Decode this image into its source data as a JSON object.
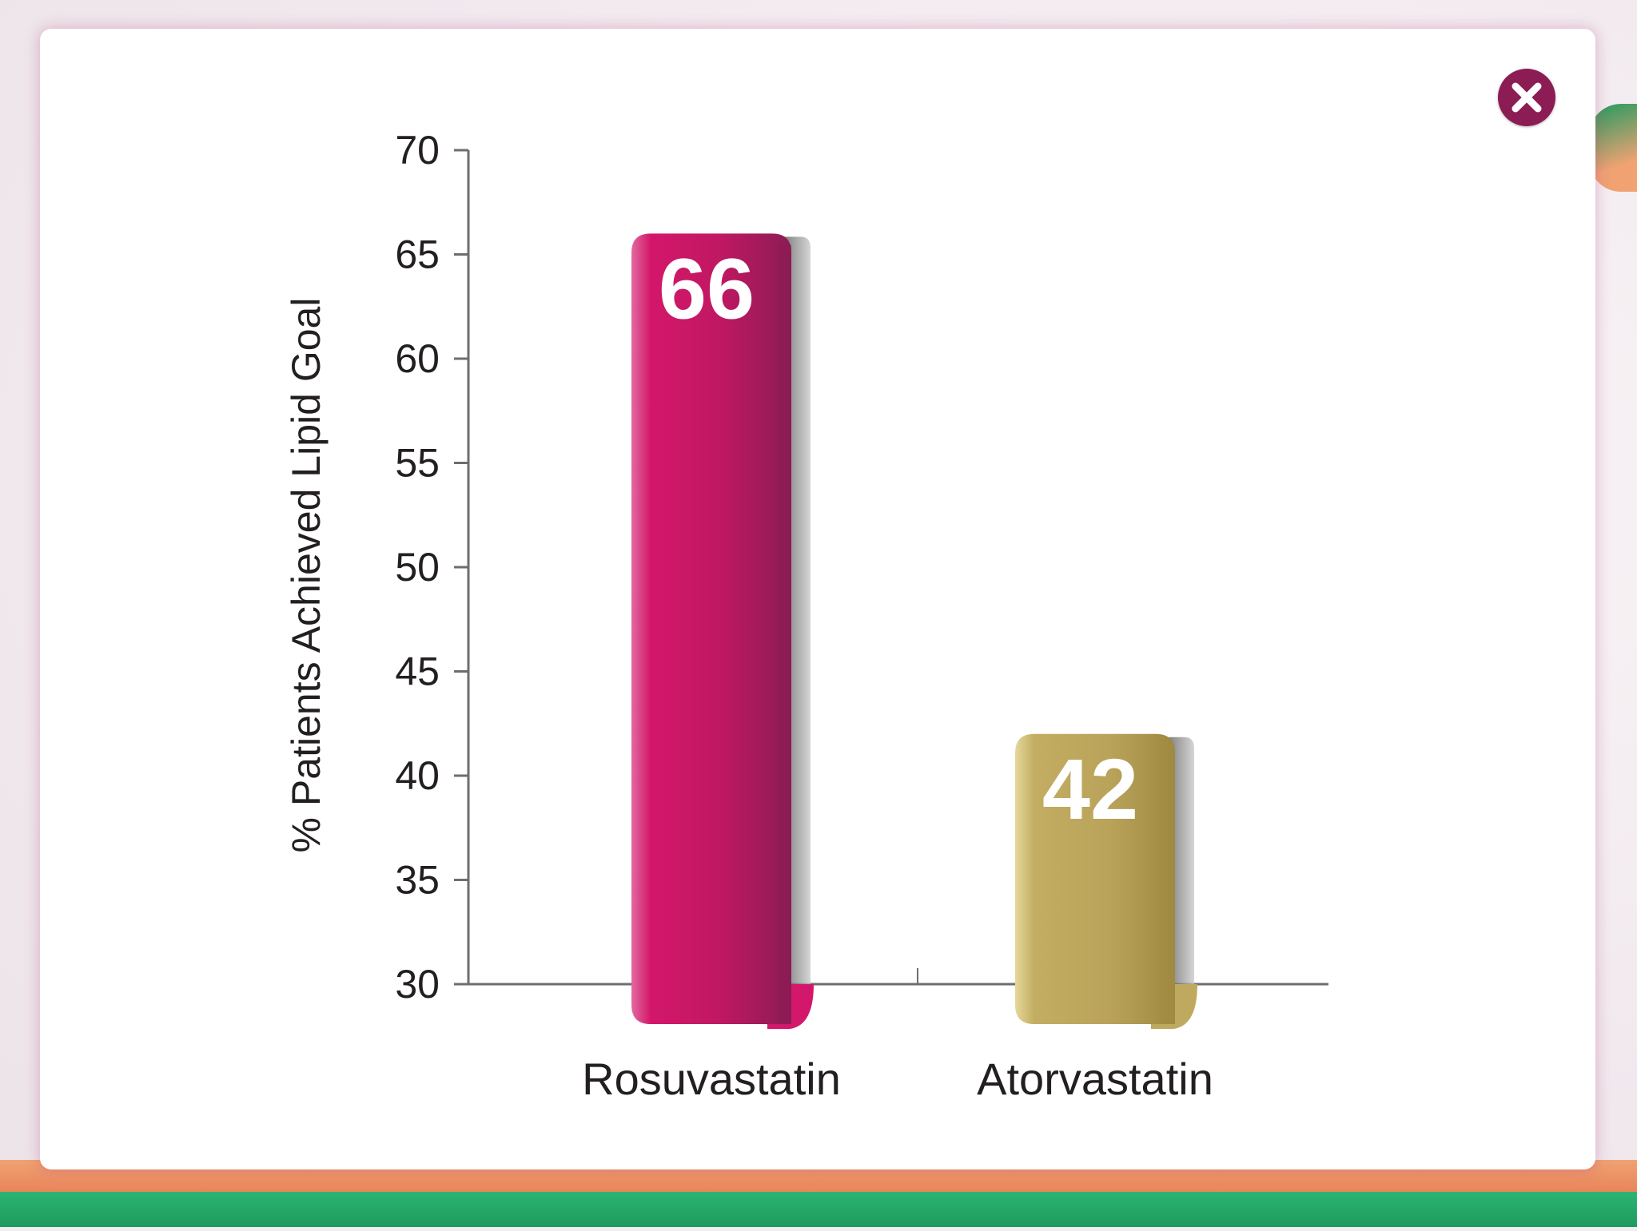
{
  "colors": {
    "rosuvastatin": "#d3176a",
    "rosuvastatin_dark": "#8c1c54",
    "atorvastatin": "#bfa95e",
    "atorvastatin_dark": "#a38d44",
    "close": "#8c1c54"
  },
  "chart_data": {
    "type": "bar",
    "categories": [
      "Rosuvastatin",
      "Atorvastatin"
    ],
    "values": [
      66,
      42
    ],
    "data_labels": [
      "66",
      "42"
    ],
    "title": "",
    "xlabel": "",
    "ylabel": "% Patients Achieved Lipid Goal",
    "ylim": [
      30,
      70
    ],
    "yticks": [
      "30",
      "35",
      "40",
      "45",
      "50",
      "55",
      "60",
      "65",
      "70"
    ],
    "grid": false
  }
}
